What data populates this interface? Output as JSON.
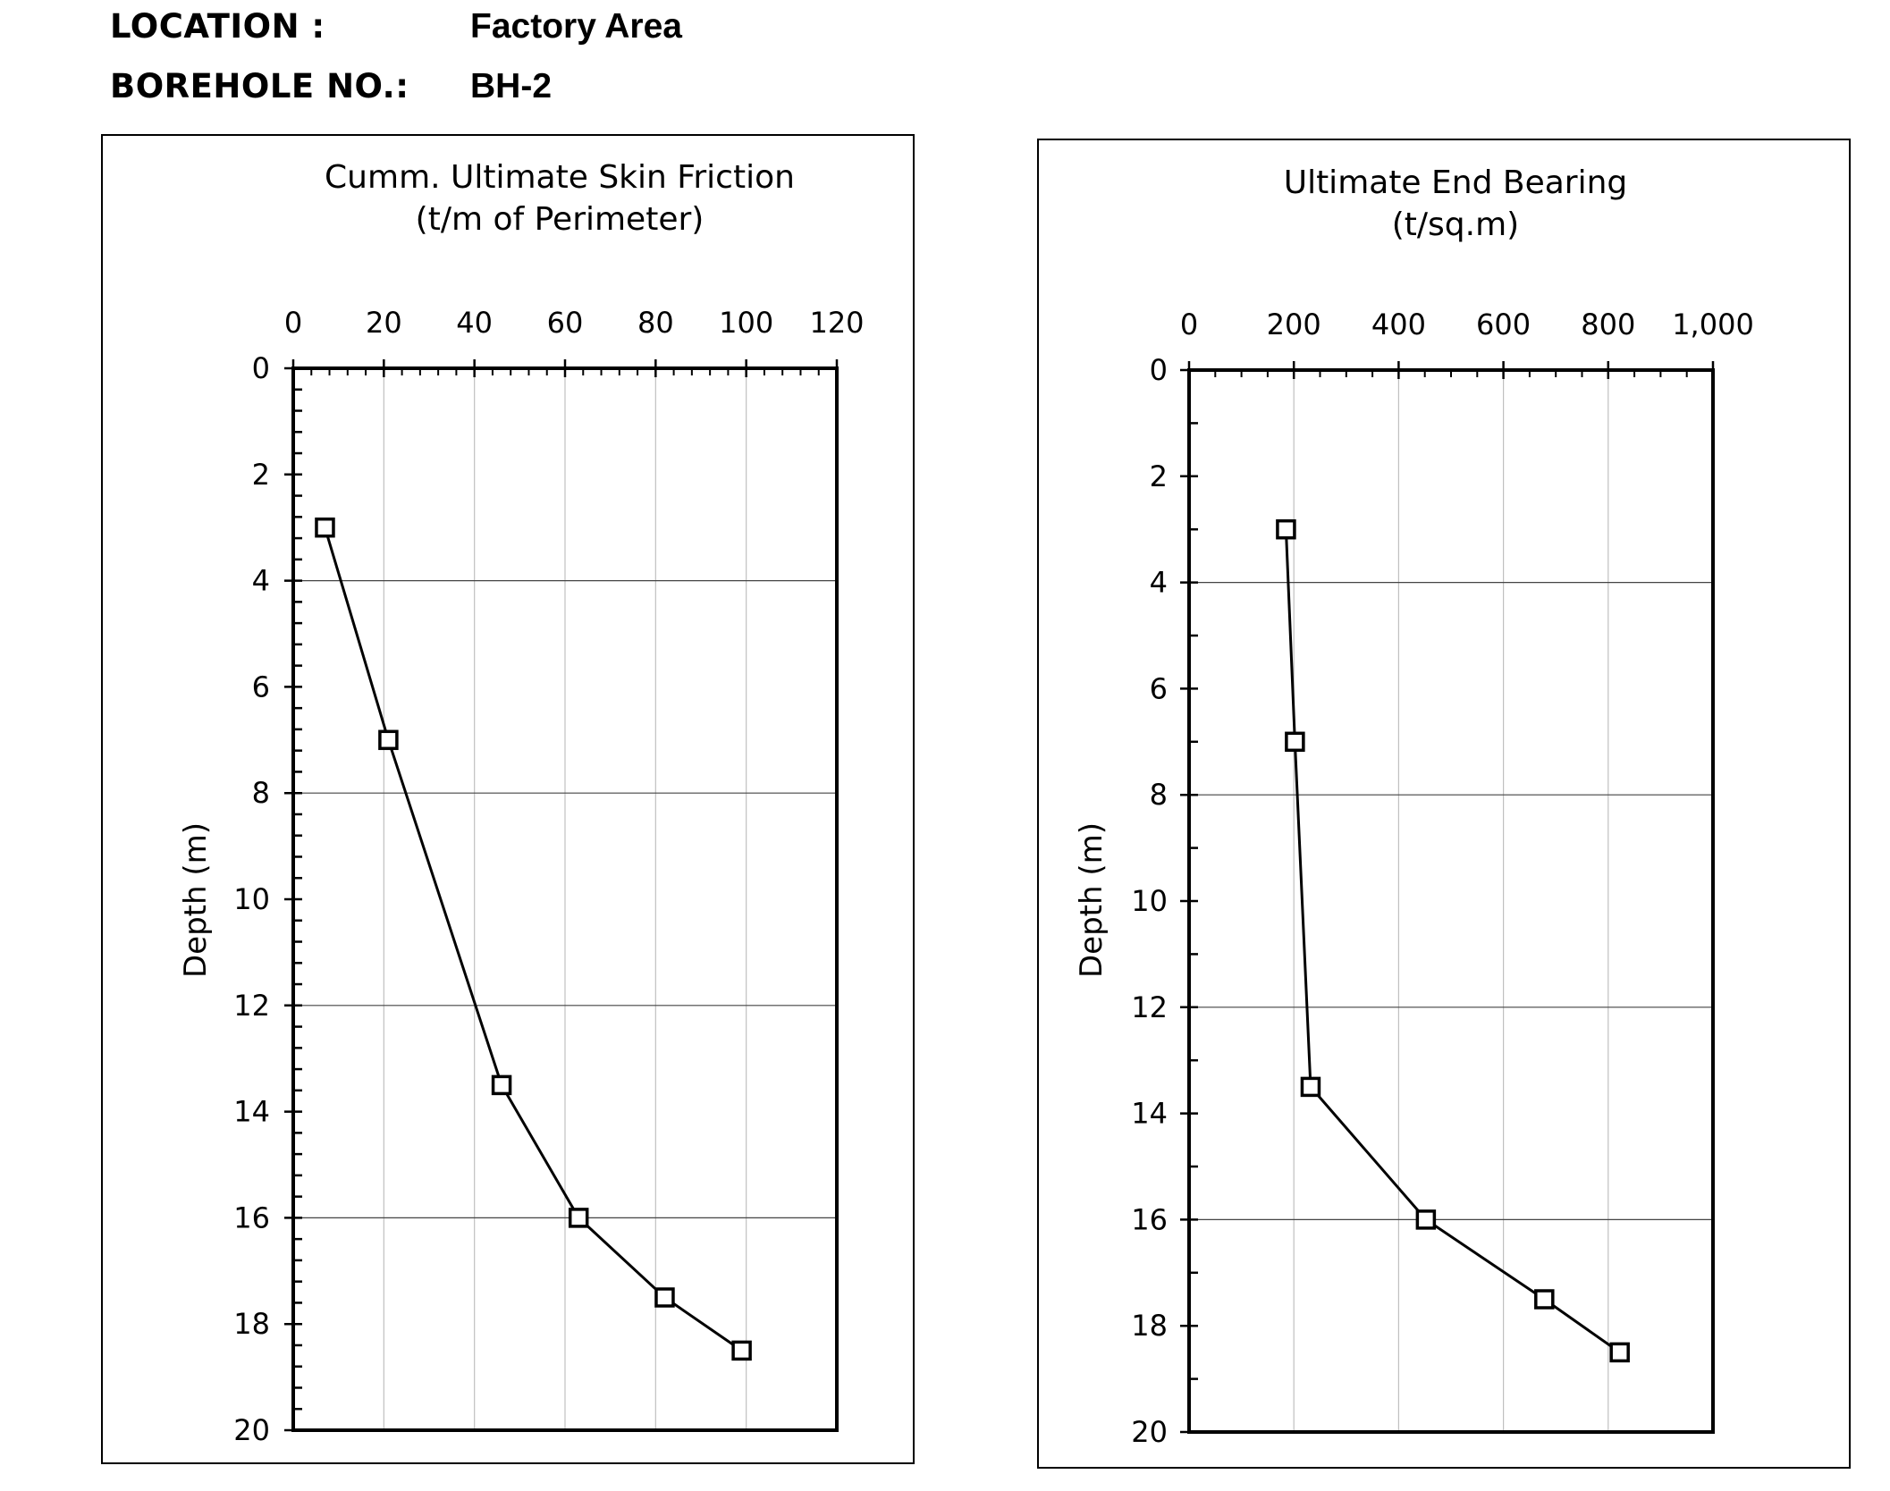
{
  "header": {
    "location_label": "LOCATION :",
    "location_value": "Factory Area",
    "borehole_label": "BOREHOLE NO.:",
    "borehole_value": "BH-2"
  },
  "chart_data": [
    {
      "type": "line",
      "title": "Cumm. Ultimate Skin Friction",
      "subtitle": "(t/m of Perimeter)",
      "ylabel": "Depth (m)",
      "xlim": [
        0,
        120
      ],
      "ylim": [
        0,
        20
      ],
      "y_reversed": true,
      "x_ticks": [
        "0",
        "20",
        "40",
        "60",
        "80",
        "100",
        "120"
      ],
      "y_ticks": [
        "0",
        "2",
        "4",
        "6",
        "8",
        "10",
        "12",
        "14",
        "16",
        "18",
        "20"
      ],
      "grid": true,
      "marker": "open-square",
      "series": [
        {
          "x": [
            7,
            21,
            46,
            63,
            82,
            99
          ],
          "y": [
            3,
            7,
            13.5,
            16,
            17.5,
            18.5
          ]
        }
      ]
    },
    {
      "type": "line",
      "title": "Ultimate End Bearing",
      "subtitle": "(t/sq.m)",
      "ylabel": "Depth (m)",
      "xlim": [
        0,
        1000
      ],
      "ylim": [
        0,
        20
      ],
      "y_reversed": true,
      "x_ticks": [
        "0",
        "200",
        "400",
        "600",
        "800",
        "1,000"
      ],
      "y_ticks": [
        "0",
        "2",
        "4",
        "6",
        "8",
        "10",
        "12",
        "14",
        "16",
        "18",
        "20"
      ],
      "grid": true,
      "marker": "open-square",
      "series": [
        {
          "x": [
            185,
            202,
            232,
            452,
            678,
            822
          ],
          "y": [
            3,
            7,
            13.5,
            16,
            17.5,
            18.5
          ]
        }
      ]
    }
  ]
}
